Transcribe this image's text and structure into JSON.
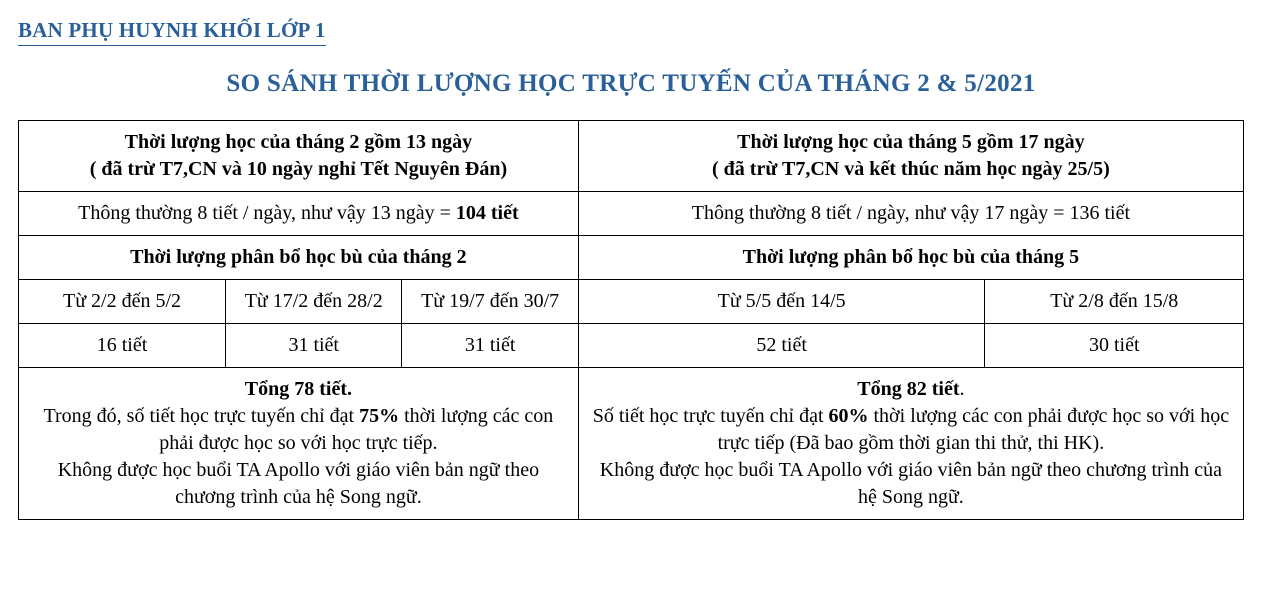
{
  "colors": {
    "accent": "#2a6099",
    "underline": "#2a6099",
    "text": "#000000",
    "bg": "#ffffff",
    "border": "#000000"
  },
  "header": {
    "overline": "BAN PHỤ HUYNH KHỐI LỚP 1",
    "title": "SO SÁNH THỜI LƯỢNG HỌC TRỰC TUYẾN CỦA THÁNG 2 & 5/2021"
  },
  "table": {
    "left": {
      "top_l1": "Thời lượng học của tháng 2 gồm 13 ngày",
      "top_l2": "( đã trừ T7,CN và 10 ngày nghỉ Tết Nguyên Đán)",
      "calc_plain": "Thông thường 8 tiết / ngày, như vậy 13 ngày = ",
      "calc_bold": "104 tiết",
      "alloc_title": "Thời lượng phân bổ học bù của tháng 2",
      "periods": [
        "Từ 2/2 đến 5/2",
        "Từ 17/2 đến 28/2",
        "Từ 19/7 đến 30/7"
      ],
      "lessons": [
        "16 tiết",
        "31 tiết",
        "31 tiết"
      ],
      "sum_bold": "Tổng 78 tiết.",
      "sum_l1a": "Trong đó, số tiết học trực tuyến chỉ đạt ",
      "sum_l1pct": "75%",
      "sum_l1b": " thời lượng các con phải được học so với học trực tiếp.",
      "sum_l2": "Không được học buổi TA Apollo với giáo viên bản ngữ theo chương trình của hệ Song ngữ."
    },
    "right": {
      "top_l1": "Thời lượng học của tháng 5 gồm 17 ngày",
      "top_l2": "( đã trừ T7,CN và kết thúc năm học ngày 25/5)",
      "calc": "Thông thường 8 tiết / ngày, như vậy 17 ngày = 136 tiết",
      "alloc_title": "Thời lượng phân bổ học bù của tháng 5",
      "periods": [
        "Từ 5/5 đến 14/5",
        "Từ 2/8 đến 15/8"
      ],
      "lessons": [
        "52 tiết",
        "30 tiết"
      ],
      "sum_bold": "Tổng 82 tiết",
      "sum_dot": ".",
      "sum_l1a": "Số tiết học trực tuyến chỉ đạt ",
      "sum_l1pct": "60%",
      "sum_l1b": " thời lượng các con phải được học so với học trực tiếp (Đã bao gồm thời gian thi thử, thi HK).",
      "sum_l2": "Không được học buổi TA Apollo với giáo viên bản ngữ theo chương trình của hệ Song ngữ."
    },
    "col_widths": {
      "left_sub": [
        "16.9%",
        "14.4%",
        "14.4%"
      ],
      "right_sub": [
        "33.2%",
        "21.1%"
      ]
    }
  }
}
